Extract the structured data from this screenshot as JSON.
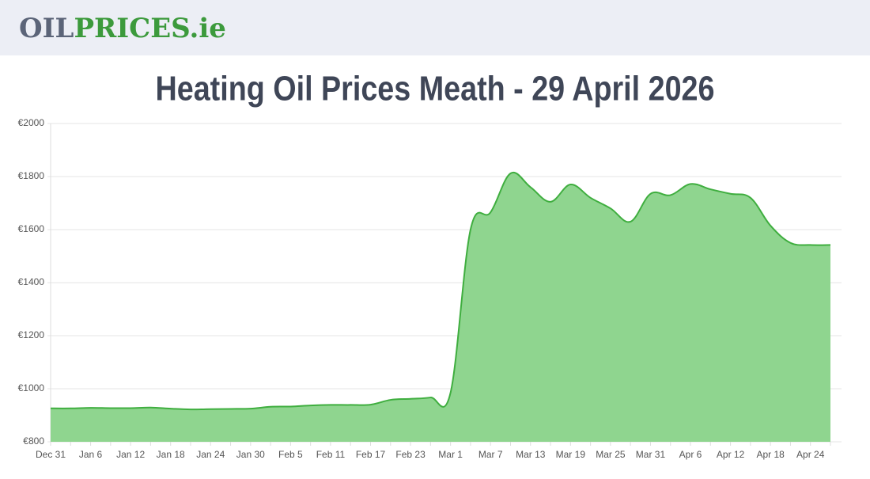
{
  "header": {
    "logo": [
      "OIL",
      "PRICES.ie"
    ]
  },
  "chart_data": {
    "type": "area",
    "title": "Heating Oil Prices Meath - 29 April 2026",
    "categories": [
      "Dec 31",
      null,
      "Jan 6",
      null,
      "Jan 12",
      null,
      "Jan 18",
      null,
      "Jan 24",
      null,
      "Jan 30",
      null,
      "Feb 5",
      null,
      "Feb 11",
      null,
      "Feb 17",
      null,
      "Feb 23",
      null,
      "Mar 1",
      null,
      "Mar 7",
      null,
      "Mar 13",
      null,
      "Mar 19",
      null,
      "Mar 25",
      null,
      "Mar 31",
      null,
      "Apr 6",
      null,
      "Apr 12",
      null,
      "Apr 18",
      null,
      "Apr 24",
      null
    ],
    "values": [
      926,
      926,
      928,
      927,
      927,
      929,
      925,
      922,
      923,
      924,
      925,
      932,
      933,
      937,
      939,
      939,
      940,
      958,
      962,
      967,
      985,
      1600,
      1665,
      1812,
      1760,
      1705,
      1770,
      1720,
      1680,
      1630,
      1735,
      1730,
      1772,
      1752,
      1735,
      1720,
      1615,
      1550,
      1542,
      1542
    ],
    "color": "#3fae3f",
    "fill": "#8fd58f",
    "ylim": [
      800,
      2000
    ],
    "yticks": [
      {
        "value": 800,
        "label": "€800"
      },
      {
        "value": 1000,
        "label": "€1000"
      },
      {
        "value": 1200,
        "label": "€1200"
      },
      {
        "value": 1400,
        "label": "€1400"
      },
      {
        "value": 1600,
        "label": "€1600"
      },
      {
        "value": 1800,
        "label": "€1800"
      },
      {
        "value": 2000,
        "label": "€2000"
      }
    ],
    "grid": true
  }
}
